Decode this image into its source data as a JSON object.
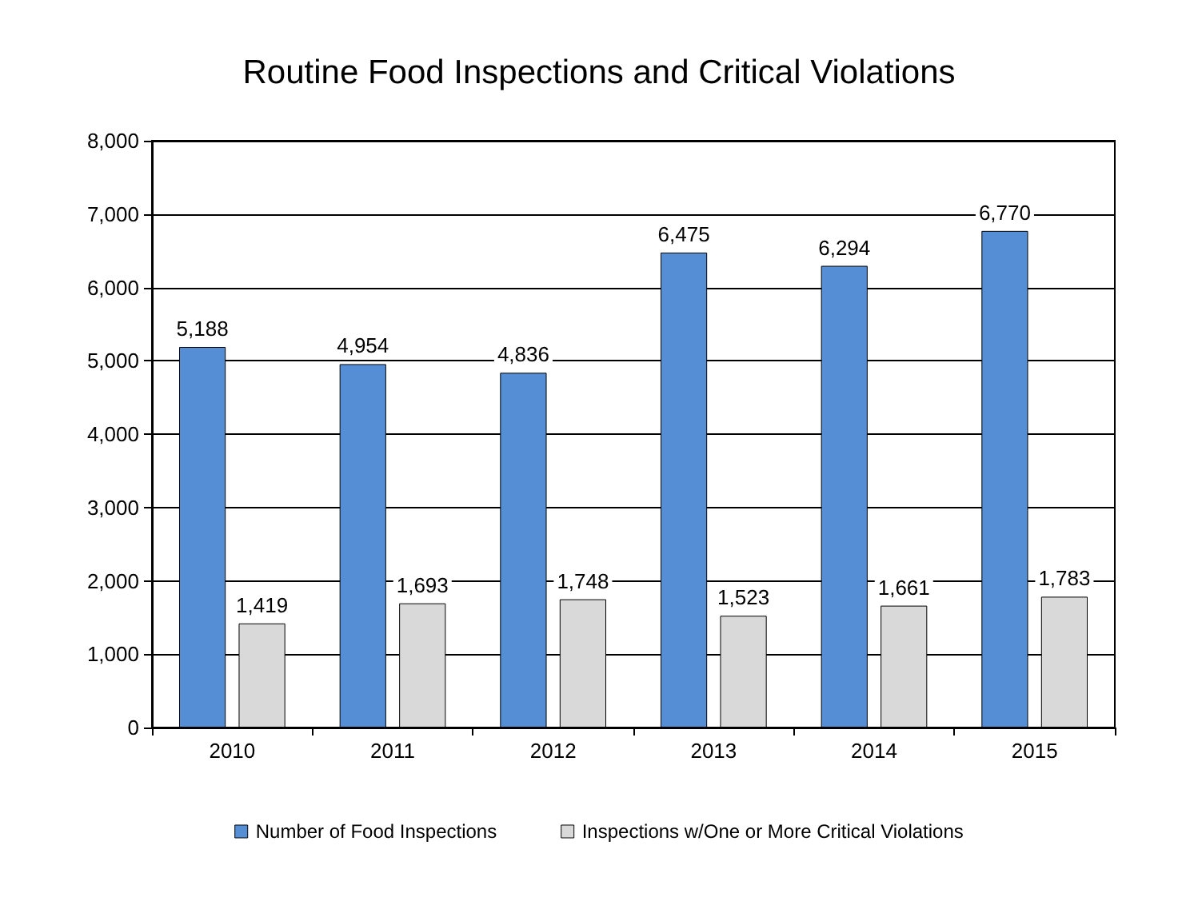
{
  "chart_data": {
    "type": "bar",
    "title": "Routine Food Inspections and Critical Violations",
    "categories": [
      "2010",
      "2011",
      "2012",
      "2013",
      "2014",
      "2015"
    ],
    "series": [
      {
        "name": "Number of Food Inspections",
        "color": "#558ed5",
        "values": [
          5188,
          4954,
          4836,
          6475,
          6294,
          6770
        ],
        "value_labels": [
          "5,188",
          "4,954",
          "4,836",
          "6,475",
          "6,294",
          "6,770"
        ]
      },
      {
        "name": "Inspections w/One or More Critical Violations",
        "color": "#d9d9d9",
        "values": [
          1419,
          1693,
          1748,
          1523,
          1661,
          1783
        ],
        "value_labels": [
          "1,419",
          "1,693",
          "1,748",
          "1,523",
          "1,661",
          "1,783"
        ]
      }
    ],
    "ylim": [
      0,
      8000
    ],
    "yticks": [
      0,
      {
        "value": 1000,
        "label": "1,000"
      },
      {
        "value": 2000,
        "label": "2,000"
      },
      {
        "value": 3000,
        "label": "3,000"
      },
      {
        "value": 4000,
        "label": "4,000"
      },
      {
        "value": 5000,
        "label": "5,000"
      },
      {
        "value": 6000,
        "label": "6,000"
      },
      {
        "value": 7000,
        "label": "7,000"
      },
      {
        "value": 8000,
        "label": "8,000"
      }
    ],
    "grid": "y",
    "legend": "bottom"
  }
}
